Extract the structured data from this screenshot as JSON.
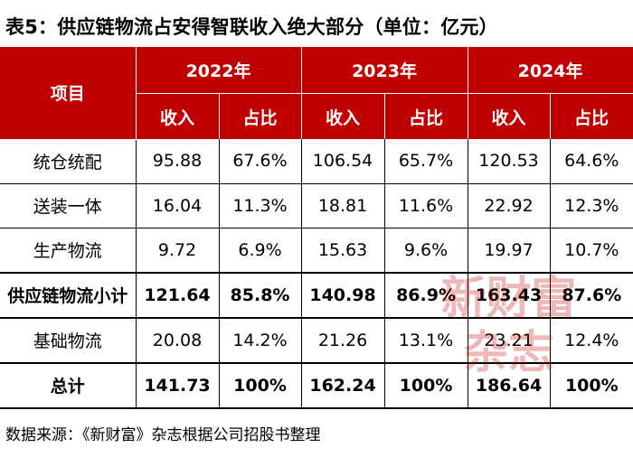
{
  "title": "表5：供应链物流占安得智联收入绝大部分（单位：亿元）",
  "header": {
    "item_label": "项目",
    "years": [
      "2022年",
      "2023年",
      "2024年"
    ],
    "sub_labels": [
      "收入",
      "占比"
    ]
  },
  "rows": [
    {
      "name": "统仓统配",
      "values": [
        "95.88",
        "67.6%",
        "106.54",
        "65.7%",
        "120.53",
        "64.6%"
      ]
    },
    {
      "name": "送装一体",
      "values": [
        "16.04",
        "11.3%",
        "18.81",
        "11.6%",
        "22.92",
        "12.3%"
      ]
    },
    {
      "name": "生产物流",
      "values": [
        "9.72",
        "6.9%",
        "15.63",
        "9.6%",
        "19.97",
        "10.7%"
      ]
    },
    {
      "name": "供应链物流小计",
      "values": [
        "121.64",
        "85.8%",
        "140.98",
        "86.9%",
        "163.43",
        "87.6%"
      ]
    },
    {
      "name": "基础物流",
      "values": [
        "20.08",
        "14.2%",
        "21.26",
        "13.1%",
        "23.21",
        "12.4%"
      ]
    },
    {
      "name": "总计",
      "values": [
        "141.73",
        "100%",
        "162.24",
        "100%",
        "186.64",
        "100%"
      ]
    }
  ],
  "watermark": [
    "新财富",
    "杂志"
  ],
  "source": "数据来源：《新财富》杂志根据公司招股书整理",
  "colors": {
    "header_bg": "#c00000",
    "header_text": "#ffffff",
    "watermark": "#c00000"
  }
}
